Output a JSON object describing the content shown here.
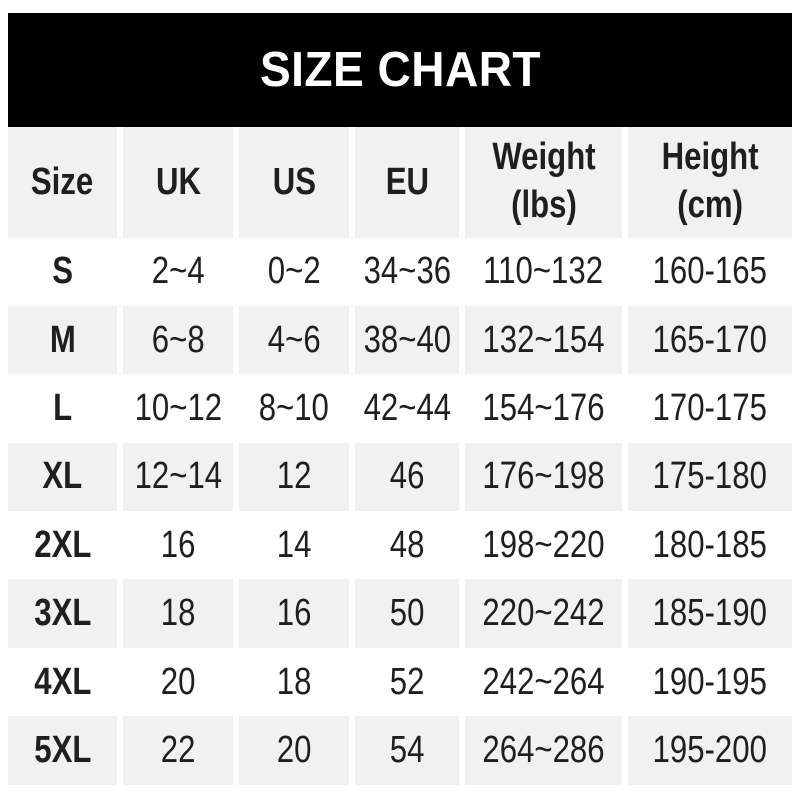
{
  "colors": {
    "banner_bg": "#000000",
    "title_color": "#ffffff",
    "stripe": "#f1f1f1",
    "text": "#1f1f1f",
    "page_bg": "#ffffff"
  },
  "chart_data": {
    "type": "table",
    "title": "SIZE CHART",
    "columns": [
      "Size",
      "UK",
      "US",
      "EU",
      "Weight (lbs)",
      "Height (cm)"
    ],
    "header": [
      {
        "line1": "Size"
      },
      {
        "line1": "UK"
      },
      {
        "line1": "US"
      },
      {
        "line1": "EU"
      },
      {
        "line1": "Weight",
        "line2": "(lbs)"
      },
      {
        "line1": "Height",
        "line2": "(cm)"
      }
    ],
    "rows": [
      [
        "S",
        "2~4",
        "0~2",
        "34~36",
        "110~132",
        "160-165"
      ],
      [
        "M",
        "6~8",
        "4~6",
        "38~40",
        "132~154",
        "165-170"
      ],
      [
        "L",
        "10~12",
        "8~10",
        "42~44",
        "154~176",
        "170-175"
      ],
      [
        "XL",
        "12~14",
        "12",
        "46",
        "176~198",
        "175-180"
      ],
      [
        "2XL",
        "16",
        "14",
        "48",
        "198~220",
        "180-185"
      ],
      [
        "3XL",
        "18",
        "16",
        "50",
        "220~242",
        "185-190"
      ],
      [
        "4XL",
        "20",
        "18",
        "52",
        "242~264",
        "190-195"
      ],
      [
        "5XL",
        "22",
        "20",
        "54",
        "264~286",
        "195-200"
      ]
    ],
    "layout": {
      "striping": "header and alternate data rows shaded",
      "stripe_color": "#f1f1f1",
      "column_separator": "white gaps between columns",
      "legend": "none",
      "grid": "off"
    }
  }
}
